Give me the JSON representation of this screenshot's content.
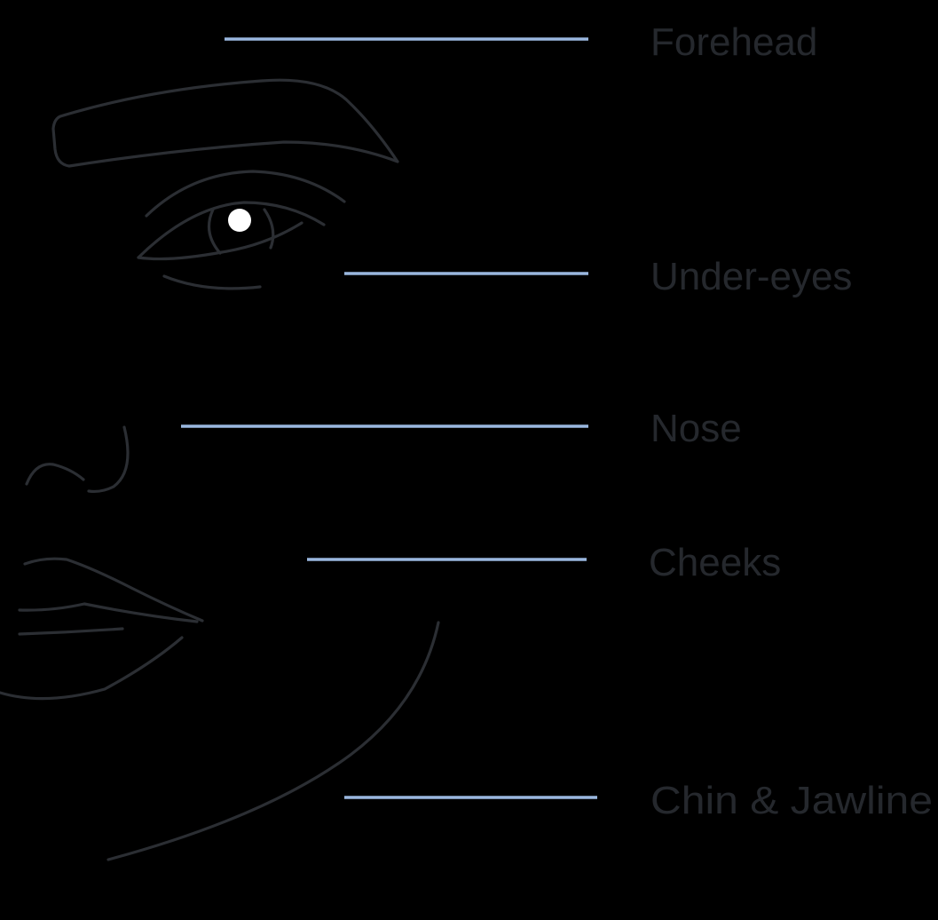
{
  "colors": {
    "background": "#000000",
    "outline": "#2b2e33",
    "leader_line": "#9ab7df",
    "label_text": "#25282d",
    "pupil_highlight": "#ffffff"
  },
  "zones": [
    {
      "label": "Forehead"
    },
    {
      "label": "Under-eyes"
    },
    {
      "label": "Nose"
    },
    {
      "label": "Cheeks"
    },
    {
      "label": "Chin & Jawline"
    }
  ]
}
